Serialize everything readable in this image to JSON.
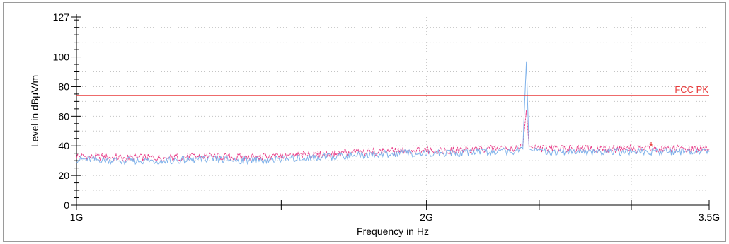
{
  "chart_data": {
    "type": "line",
    "xlabel": "Frequency in Hz",
    "ylabel": "Level in dBµV/m",
    "x_scale": "log",
    "xlim": [
      1000000000,
      3500000000
    ],
    "ylim": [
      0,
      127
    ],
    "x_ticks": [
      {
        "value": 1000000000,
        "label": "1G"
      },
      {
        "value": 2000000000,
        "label": "2G"
      },
      {
        "value": 3500000000,
        "label": "3.5G"
      }
    ],
    "y_ticks": [
      0,
      20,
      40,
      60,
      80,
      100,
      127
    ],
    "grid": true,
    "limit_line": {
      "name": "FCC PK",
      "value": 74,
      "color": "#e83a3a"
    },
    "series": [
      {
        "color": "#e8408a",
        "style": "dashed",
        "points": [
          [
            1000000000,
            33
          ],
          [
            1100000000,
            32
          ],
          [
            1200000000,
            32
          ],
          [
            1300000000,
            33
          ],
          [
            1400000000,
            32
          ],
          [
            1500000000,
            33
          ],
          [
            1600000000,
            34
          ],
          [
            1700000000,
            35
          ],
          [
            1800000000,
            36
          ],
          [
            1900000000,
            37
          ],
          [
            2000000000,
            37
          ],
          [
            2100000000,
            37
          ],
          [
            2200000000,
            38
          ],
          [
            2300000000,
            38
          ],
          [
            2380000000,
            38
          ],
          [
            2420000000,
            40
          ],
          [
            2437000000,
            64
          ],
          [
            2450000000,
            40
          ],
          [
            2480000000,
            38
          ],
          [
            2600000000,
            38
          ],
          [
            2800000000,
            38
          ],
          [
            3000000000,
            38
          ],
          [
            3200000000,
            38
          ],
          [
            3500000000,
            38
          ]
        ]
      },
      {
        "color": "#7fb2ea",
        "style": "solid",
        "points": [
          [
            1000000000,
            31
          ],
          [
            1100000000,
            30
          ],
          [
            1200000000,
            30
          ],
          [
            1300000000,
            31
          ],
          [
            1400000000,
            30
          ],
          [
            1500000000,
            31
          ],
          [
            1600000000,
            32
          ],
          [
            1700000000,
            33
          ],
          [
            1800000000,
            34
          ],
          [
            1900000000,
            35
          ],
          [
            2000000000,
            35
          ],
          [
            2100000000,
            35
          ],
          [
            2200000000,
            36
          ],
          [
            2300000000,
            36
          ],
          [
            2380000000,
            36
          ],
          [
            2420000000,
            38
          ],
          [
            2437000000,
            97
          ],
          [
            2450000000,
            38
          ],
          [
            2480000000,
            36
          ],
          [
            2600000000,
            36
          ],
          [
            2800000000,
            36
          ],
          [
            3000000000,
            36
          ],
          [
            3200000000,
            36
          ],
          [
            3500000000,
            36
          ]
        ]
      }
    ],
    "markers": [
      {
        "symbol": "*",
        "x": 3120000000,
        "y": 40,
        "color": "#e83a3a"
      }
    ]
  }
}
